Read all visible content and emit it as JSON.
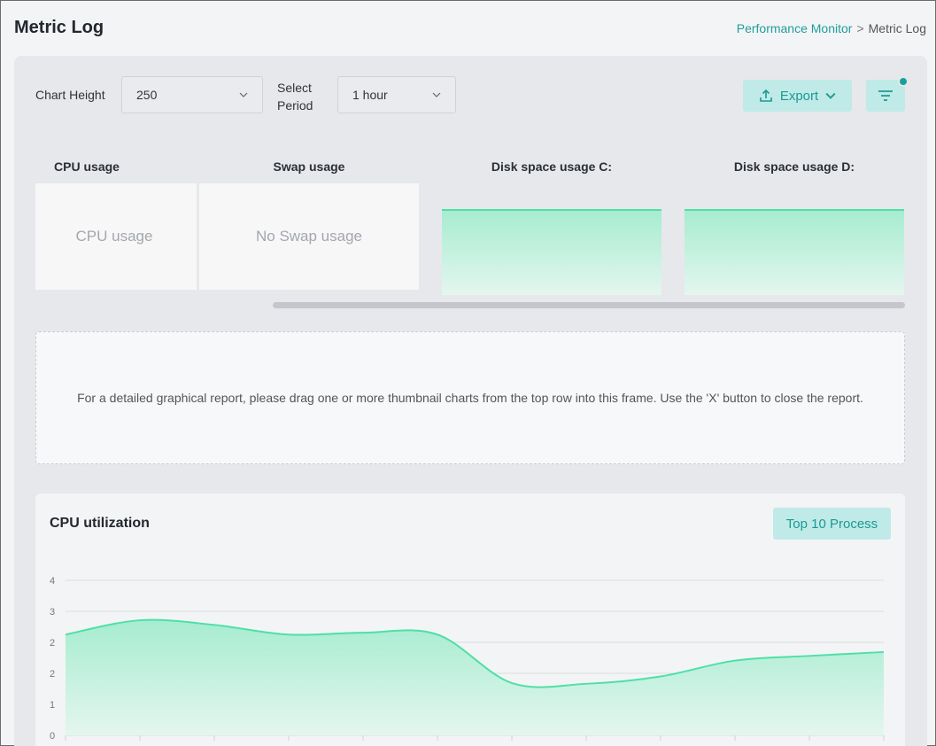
{
  "header": {
    "title": "Metric Log",
    "breadcrumb": {
      "link": "Performance Monitor",
      "separator": ">",
      "current": "Metric Log"
    }
  },
  "toolbar": {
    "chart_height_label": "Chart Height",
    "chart_height_value": "250",
    "period_label_line1": "Select",
    "period_label_line2": "Period",
    "period_value": "1 hour",
    "export_label": "Export"
  },
  "thumbnails": [
    {
      "title": "CPU usage",
      "empty_text": "CPU usage"
    },
    {
      "title": "Swap usage",
      "empty_text": "No Swap usage"
    },
    {
      "title": "Disk space usage C:",
      "empty_text": ""
    },
    {
      "title": "Disk space usage D:",
      "empty_text": ""
    }
  ],
  "dropzone": {
    "text": "For a detailed graphical report, please drag one or more thumbnail charts from the top row into this frame. Use the 'X' button to close the report."
  },
  "cpu_card": {
    "title": "CPU utilization",
    "top10_label": "Top 10 Process"
  },
  "colors": {
    "accent": "#1f9e98",
    "accent_bg": "#bfeae7",
    "line": "#4ee0a7",
    "fill_top": "#a6ecd0",
    "fill_bottom": "#e4f6ef"
  },
  "chart_data": {
    "type": "area",
    "title": "CPU utilization",
    "ytick_labels": [
      "0",
      "1",
      "2",
      "2",
      "3",
      "4"
    ],
    "ylim": [
      0,
      4
    ],
    "x": [
      0,
      1,
      2,
      3,
      4,
      5,
      6,
      7,
      8,
      9,
      10,
      11
    ],
    "series": [
      {
        "values": [
          2.6,
          2.97,
          2.85,
          2.6,
          2.65,
          2.6,
          1.35,
          1.33,
          1.52,
          1.93,
          2.05,
          2.15
        ]
      }
    ],
    "grid": true
  }
}
